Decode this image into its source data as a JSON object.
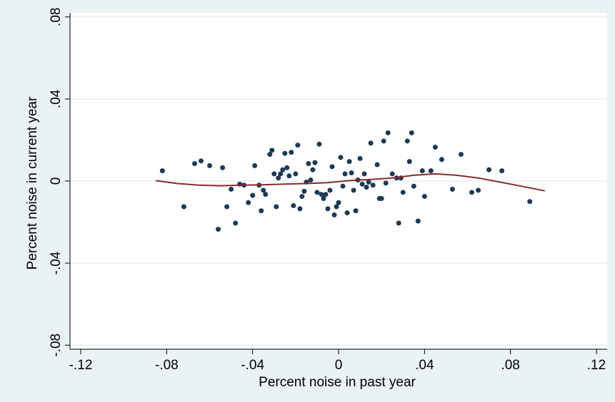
{
  "chart_data": {
    "type": "scatter",
    "title": "",
    "xlabel": "Percent noise in past year",
    "ylabel": "Percent noise in current year",
    "xlim": [
      -0.125,
      0.125
    ],
    "ylim": [
      -0.082,
      0.082
    ],
    "xticks": [
      -0.12,
      -0.08,
      -0.04,
      0,
      0.04,
      0.08,
      0.12
    ],
    "xtick_labels": [
      "-.12",
      "-.08",
      "-.04",
      "0",
      ".04",
      ".08",
      ".12"
    ],
    "yticks": [
      -0.08,
      -0.04,
      0,
      0.04,
      0.08
    ],
    "ytick_labels": [
      "-.08",
      "-.04",
      "0",
      ".04",
      ".08"
    ],
    "grid": true,
    "legend": "none",
    "colors": {
      "background": "#eaf2f3",
      "plot": "#ffffff",
      "points": "#1c3a55",
      "fit": "#8b2a2a",
      "grid": "#e6eef0"
    },
    "series": [
      {
        "type": "scatter",
        "points": [
          [
            -0.082,
            0.005
          ],
          [
            -0.072,
            -0.0125
          ],
          [
            -0.067,
            0.0085
          ],
          [
            -0.064,
            0.0098
          ],
          [
            -0.06,
            0.0075
          ],
          [
            -0.056,
            -0.0235
          ],
          [
            -0.054,
            0.0065
          ],
          [
            -0.052,
            -0.0125
          ],
          [
            -0.05,
            -0.004
          ],
          [
            -0.048,
            -0.0205
          ],
          [
            -0.046,
            -0.0015
          ],
          [
            -0.044,
            -0.002
          ],
          [
            -0.042,
            -0.0105
          ],
          [
            -0.04,
            -0.007
          ],
          [
            -0.039,
            0.0075
          ],
          [
            -0.037,
            -0.002
          ],
          [
            -0.036,
            -0.0145
          ],
          [
            -0.035,
            -0.0045
          ],
          [
            -0.034,
            -0.0065
          ],
          [
            -0.032,
            0.013
          ],
          [
            -0.031,
            0.015
          ],
          [
            -0.03,
            0.0035
          ],
          [
            -0.029,
            -0.0125
          ],
          [
            -0.028,
            0.0015
          ],
          [
            -0.027,
            0.0035
          ],
          [
            -0.026,
            0.0055
          ],
          [
            -0.025,
            0.0135
          ],
          [
            -0.024,
            0.0065
          ],
          [
            -0.023,
            0.0025
          ],
          [
            -0.022,
            0.014
          ],
          [
            -0.021,
            -0.012
          ],
          [
            -0.02,
            0.0035
          ],
          [
            -0.019,
            0.0175
          ],
          [
            -0.018,
            -0.0135
          ],
          [
            -0.017,
            -0.0075
          ],
          [
            -0.016,
            -0.005
          ],
          [
            -0.015,
            -0.0005
          ],
          [
            -0.014,
            0.0085
          ],
          [
            -0.013,
            0.0005
          ],
          [
            -0.012,
            0.0055
          ],
          [
            -0.011,
            0.009
          ],
          [
            -0.01,
            -0.0055
          ],
          [
            -0.009,
            0.018
          ],
          [
            -0.008,
            -0.0065
          ],
          [
            -0.007,
            -0.0085
          ],
          [
            -0.006,
            -0.0065
          ],
          [
            -0.005,
            -0.0135
          ],
          [
            -0.004,
            -0.0045
          ],
          [
            -0.003,
            0.007
          ],
          [
            -0.002,
            -0.0165
          ],
          [
            -0.001,
            -0.0125
          ],
          [
            0.0,
            -0.0105
          ],
          [
            0.001,
            0.0115
          ],
          [
            0.002,
            -0.0025
          ],
          [
            0.003,
            0.0035
          ],
          [
            0.004,
            -0.0155
          ],
          [
            0.005,
            0.0095
          ],
          [
            0.006,
            0.004
          ],
          [
            0.007,
            -0.0045
          ],
          [
            0.008,
            -0.0145
          ],
          [
            0.009,
            0.0005
          ],
          [
            0.01,
            0.011
          ],
          [
            0.011,
            -0.0015
          ],
          [
            0.012,
            0.0035
          ],
          [
            0.013,
            -0.003
          ],
          [
            0.014,
            -0.0005
          ],
          [
            0.015,
            0.0185
          ],
          [
            0.016,
            -0.002
          ],
          [
            0.018,
            0.008
          ],
          [
            0.019,
            -0.0085
          ],
          [
            0.02,
            -0.0085
          ],
          [
            0.021,
            0.0195
          ],
          [
            0.022,
            -0.001
          ],
          [
            0.023,
            0.0235
          ],
          [
            0.025,
            0.0035
          ],
          [
            0.027,
            0.0015
          ],
          [
            0.028,
            -0.0205
          ],
          [
            0.029,
            0.0015
          ],
          [
            0.03,
            -0.0055
          ],
          [
            0.032,
            0.0195
          ],
          [
            0.033,
            0.0095
          ],
          [
            0.034,
            0.0235
          ],
          [
            0.035,
            -0.0025
          ],
          [
            0.037,
            -0.0195
          ],
          [
            0.039,
            0.005
          ],
          [
            0.04,
            -0.0075
          ],
          [
            0.043,
            0.005
          ],
          [
            0.045,
            0.0165
          ],
          [
            0.048,
            0.0105
          ],
          [
            0.053,
            -0.004
          ],
          [
            0.057,
            0.013
          ],
          [
            0.062,
            -0.0055
          ],
          [
            0.065,
            -0.0045
          ],
          [
            0.07,
            0.0055
          ],
          [
            0.076,
            0.005
          ],
          [
            0.089,
            -0.01
          ]
        ]
      },
      {
        "type": "line",
        "points": [
          [
            -0.085,
            0.0002
          ],
          [
            -0.075,
            -0.0012
          ],
          [
            -0.065,
            -0.002
          ],
          [
            -0.055,
            -0.0023
          ],
          [
            -0.045,
            -0.002
          ],
          [
            -0.035,
            -0.0018
          ],
          [
            -0.025,
            -0.0015
          ],
          [
            -0.015,
            -0.0012
          ],
          [
            -0.005,
            -0.0008
          ],
          [
            0.005,
            0.0002
          ],
          [
            0.015,
            0.0008
          ],
          [
            0.025,
            0.0015
          ],
          [
            0.035,
            0.0028
          ],
          [
            0.045,
            0.0035
          ],
          [
            0.055,
            0.0028
          ],
          [
            0.065,
            0.0015
          ],
          [
            0.075,
            -0.0005
          ],
          [
            0.085,
            -0.0025
          ],
          [
            0.096,
            -0.0048
          ]
        ]
      }
    ]
  }
}
